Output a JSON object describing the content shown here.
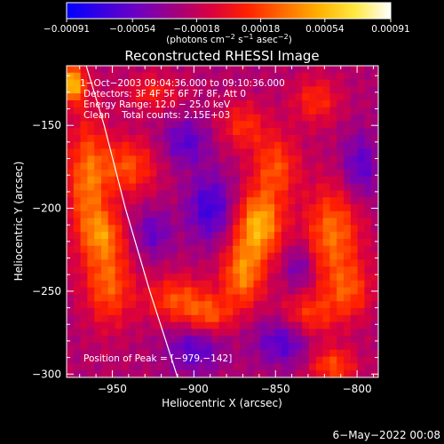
{
  "chart_data": {
    "type": "heatmap",
    "title": "Reconstructed RHESSI Image",
    "xlabel": "Heliocentric X (arcsec)",
    "ylabel": "Heliocentric Y (arcsec)",
    "xlim": [
      -978,
      -787
    ],
    "ylim": [
      -302,
      -114
    ],
    "x_ticks": [
      -950,
      -900,
      -850,
      -800
    ],
    "x_tick_labels": [
      "−950",
      "−900",
      "−850",
      "−800"
    ],
    "y_ticks": [
      -150,
      -200,
      -250,
      -300
    ],
    "y_tick_labels": [
      "−150",
      "−200",
      "−250",
      "−300"
    ],
    "colorbar": {
      "range": [
        -0.00091,
        0.00091
      ],
      "ticks": [
        -0.00091,
        -0.00054,
        -0.00018,
        0.00018,
        0.00054,
        0.00091
      ],
      "tick_labels": [
        "−0.00091",
        "−0.00054",
        "−0.00018",
        "0.00018",
        "0.00054",
        "0.00091"
      ],
      "unit_prefix": "(photons cm",
      "unit_sup1": "−2",
      "unit_mid1": " s",
      "unit_sup2": "−1",
      "unit_mid2": " asec",
      "unit_sup3": "−2",
      "unit_suffix": ")",
      "colormap": [
        "#0000ff",
        "#3a00e0",
        "#7000c0",
        "#a00080",
        "#d80040",
        "#ff2000",
        "#ff6a00",
        "#ffb000",
        "#ffe840",
        "#ffffff"
      ]
    },
    "annotations": [
      "1−Oct−2003 09:04:36.000 to 09:10:36.000",
      "Detectors: 3F 4F 5F 6F 7F 8F, Att 0",
      "Energy Range: 12.0 − 25.0 keV",
      "Clean    Total counts: 2.15E+03"
    ],
    "peak_label": "Position of Peak = [−979,−142]",
    "peak_position": [
      -979,
      -142
    ],
    "limb_curve": [
      [
        -966,
        -114
      ],
      [
        -955,
        -150
      ],
      [
        -942,
        -200
      ],
      [
        -927,
        -250
      ],
      [
        -910,
        -302
      ]
    ],
    "intensity_blobs": [
      {
        "x": -965,
        "y": -185,
        "amplitude": 0.00055,
        "sx": 9,
        "sy": 28
      },
      {
        "x": -952,
        "y": -245,
        "amplitude": 0.0005,
        "sx": 10,
        "sy": 18
      },
      {
        "x": -940,
        "y": -175,
        "amplitude": 0.00045,
        "sx": 12,
        "sy": 12
      },
      {
        "x": -955,
        "y": -215,
        "amplitude": 0.0004,
        "sx": 8,
        "sy": 10
      },
      {
        "x": -860,
        "y": -210,
        "amplitude": 0.00075,
        "sx": 10,
        "sy": 14
      },
      {
        "x": -870,
        "y": -240,
        "amplitude": 0.0006,
        "sx": 9,
        "sy": 14
      },
      {
        "x": -850,
        "y": -175,
        "amplitude": 0.00045,
        "sx": 10,
        "sy": 14
      },
      {
        "x": -870,
        "y": -150,
        "amplitude": 0.00035,
        "sx": 10,
        "sy": 10
      },
      {
        "x": -815,
        "y": -215,
        "amplitude": 0.00055,
        "sx": 12,
        "sy": 20
      },
      {
        "x": -805,
        "y": -250,
        "amplitude": 0.0004,
        "sx": 10,
        "sy": 12
      },
      {
        "x": -830,
        "y": -265,
        "amplitude": 0.0004,
        "sx": 12,
        "sy": 10
      },
      {
        "x": -910,
        "y": -255,
        "amplitude": 0.00045,
        "sx": 14,
        "sy": 10
      },
      {
        "x": -890,
        "y": -265,
        "amplitude": 0.0004,
        "sx": 10,
        "sy": 8
      },
      {
        "x": -925,
        "y": -130,
        "amplitude": 0.0003,
        "sx": 12,
        "sy": 8
      },
      {
        "x": -825,
        "y": -135,
        "amplitude": 0.00035,
        "sx": 10,
        "sy": 10
      },
      {
        "x": -815,
        "y": -295,
        "amplitude": 0.00045,
        "sx": 10,
        "sy": 8
      },
      {
        "x": -975,
        "y": -125,
        "amplitude": 0.0008,
        "sx": 6,
        "sy": 8
      },
      {
        "x": -890,
        "y": -200,
        "amplitude": -0.00045,
        "sx": 10,
        "sy": 14
      },
      {
        "x": -905,
        "y": -160,
        "amplitude": -0.00035,
        "sx": 10,
        "sy": 10
      },
      {
        "x": -845,
        "y": -280,
        "amplitude": -0.0004,
        "sx": 12,
        "sy": 10
      },
      {
        "x": -798,
        "y": -175,
        "amplitude": -0.00035,
        "sx": 8,
        "sy": 14
      },
      {
        "x": -900,
        "y": -285,
        "amplitude": -0.00035,
        "sx": 12,
        "sy": 10
      },
      {
        "x": -925,
        "y": -215,
        "amplitude": -0.0003,
        "sx": 8,
        "sy": 10
      },
      {
        "x": -835,
        "y": -235,
        "amplitude": -0.0003,
        "sx": 6,
        "sy": 10
      }
    ]
  },
  "footer": {
    "date_stamp": "6−May−2022 00:08"
  }
}
